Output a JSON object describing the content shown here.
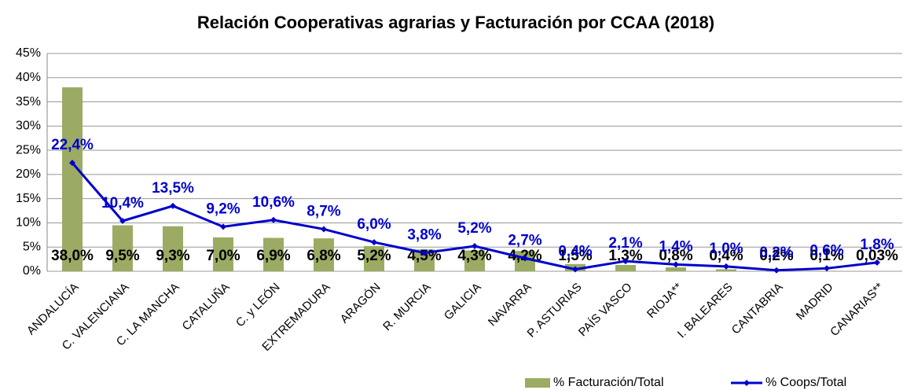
{
  "chart_data": {
    "type": "bar_line",
    "title": "Relación Cooperativas agrarias y Facturación por CCAA (2018)",
    "categories": [
      "ANDALUCÍA",
      "C. VALENCIANA",
      "C. LA MANCHA",
      "CATALUÑA",
      "C. y LEÓN",
      "EXTREMADURA",
      "ARAGÓN",
      "R. MURCIA",
      "GALICIA",
      "NAVARRA",
      "P. ASTURIAS",
      "PAÍS VASCO",
      "RIOJA**",
      "I. BALEARES",
      "CANTABRIA",
      "MADRID",
      "CANARIAS**"
    ],
    "series": [
      {
        "name": "% Facturación/Total",
        "type": "bar",
        "color": "#9bab63",
        "values": [
          38.0,
          9.5,
          9.3,
          7.0,
          6.9,
          6.8,
          5.2,
          4.5,
          4.3,
          4.2,
          1.5,
          1.3,
          0.8,
          0.4,
          0.2,
          0.1,
          0.03
        ],
        "value_labels": [
          "38,0%",
          "9,5%",
          "9,3%",
          "7,0%",
          "6,9%",
          "6,8%",
          "5,2%",
          "4,5%",
          "4,3%",
          "4,2%",
          "1,5%",
          "1,3%",
          "0,8%",
          "0,4%",
          "0,2%",
          "0,1%",
          "0,03%"
        ]
      },
      {
        "name": "% Coops/Total",
        "type": "line",
        "color": "#0000cc",
        "values": [
          22.4,
          10.4,
          13.5,
          9.2,
          10.6,
          8.7,
          6.0,
          3.8,
          5.2,
          2.7,
          0.4,
          2.1,
          1.4,
          1.0,
          0.2,
          0.6,
          1.8
        ],
        "value_labels": [
          "22,4%",
          "10,4%",
          "13,5%",
          "9,2%",
          "10,6%",
          "8,7%",
          "6,0%",
          "3,8%",
          "5,2%",
          "2,7%",
          "0,4%",
          "2,1%",
          "1,4%",
          "1,0%",
          "0,2%",
          "0,6%",
          "1,8%"
        ]
      }
    ],
    "ylim": [
      0,
      45
    ],
    "yticks": [
      {
        "value": 0,
        "label": "0%"
      },
      {
        "value": 5,
        "label": "5%"
      },
      {
        "value": 10,
        "label": "10%"
      },
      {
        "value": 15,
        "label": "15%"
      },
      {
        "value": 20,
        "label": "20%"
      },
      {
        "value": 25,
        "label": "25%"
      },
      {
        "value": 30,
        "label": "30%"
      },
      {
        "value": 35,
        "label": "35%"
      },
      {
        "value": 40,
        "label": "40%"
      },
      {
        "value": 45,
        "label": "45%"
      }
    ],
    "grid": true,
    "legend": "bottom-right"
  }
}
